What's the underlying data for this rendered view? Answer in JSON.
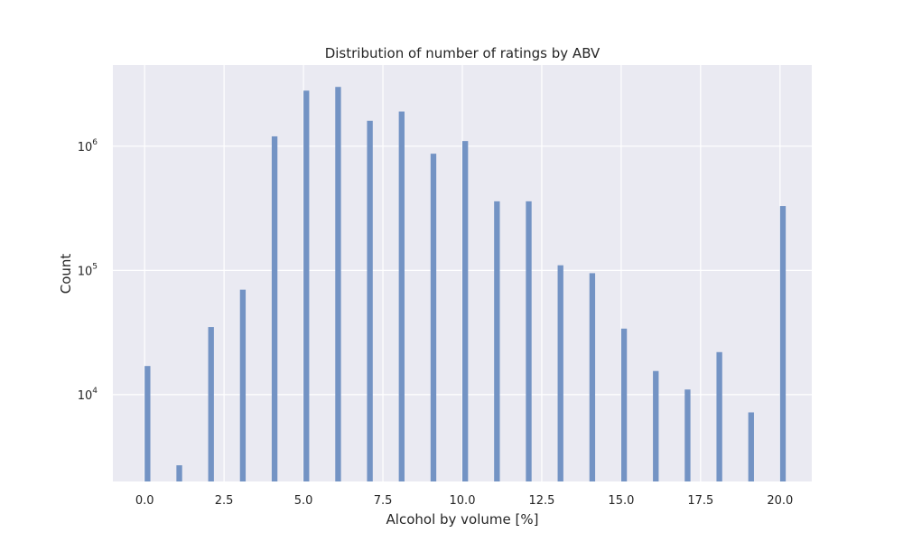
{
  "chart_data": {
    "type": "bar",
    "title": "Distribution of number of ratings by ABV",
    "xlabel": "Alcohol by volume [%]",
    "ylabel": "Count",
    "yscale": "log",
    "grid": true,
    "background": "#eaeaf2",
    "bar_color": "#7393c4",
    "grid_color": "#ffffff",
    "xlim": [
      -1.0,
      21.0
    ],
    "ylim": [
      2000,
      4500000
    ],
    "xticks": [
      {
        "value": 0.0,
        "label": "0.0"
      },
      {
        "value": 2.5,
        "label": "2.5"
      },
      {
        "value": 5.0,
        "label": "5.0"
      },
      {
        "value": 7.5,
        "label": "7.5"
      },
      {
        "value": 10.0,
        "label": "10.0"
      },
      {
        "value": 12.5,
        "label": "12.5"
      },
      {
        "value": 15.0,
        "label": "15.0"
      },
      {
        "value": 17.5,
        "label": "17.5"
      },
      {
        "value": 20.0,
        "label": "20.0"
      }
    ],
    "yticks": [
      {
        "value": 10000,
        "base": "10",
        "exp": "4"
      },
      {
        "value": 100000,
        "base": "10",
        "exp": "5"
      },
      {
        "value": 1000000,
        "base": "10",
        "exp": "6"
      }
    ],
    "bin_width": 0.18,
    "x": [
      0.09,
      1.09,
      2.09,
      3.09,
      4.09,
      5.09,
      6.09,
      7.09,
      8.09,
      9.09,
      10.09,
      11.09,
      12.09,
      13.09,
      14.09,
      15.09,
      16.09,
      17.09,
      18.09,
      19.09,
      20.09
    ],
    "values": [
      17000,
      2700,
      35000,
      70000,
      1200000,
      2800000,
      3000000,
      1600000,
      1900000,
      870000,
      1100000,
      360000,
      360000,
      110000,
      95000,
      34000,
      15500,
      11000,
      22000,
      7200,
      330000
    ]
  }
}
